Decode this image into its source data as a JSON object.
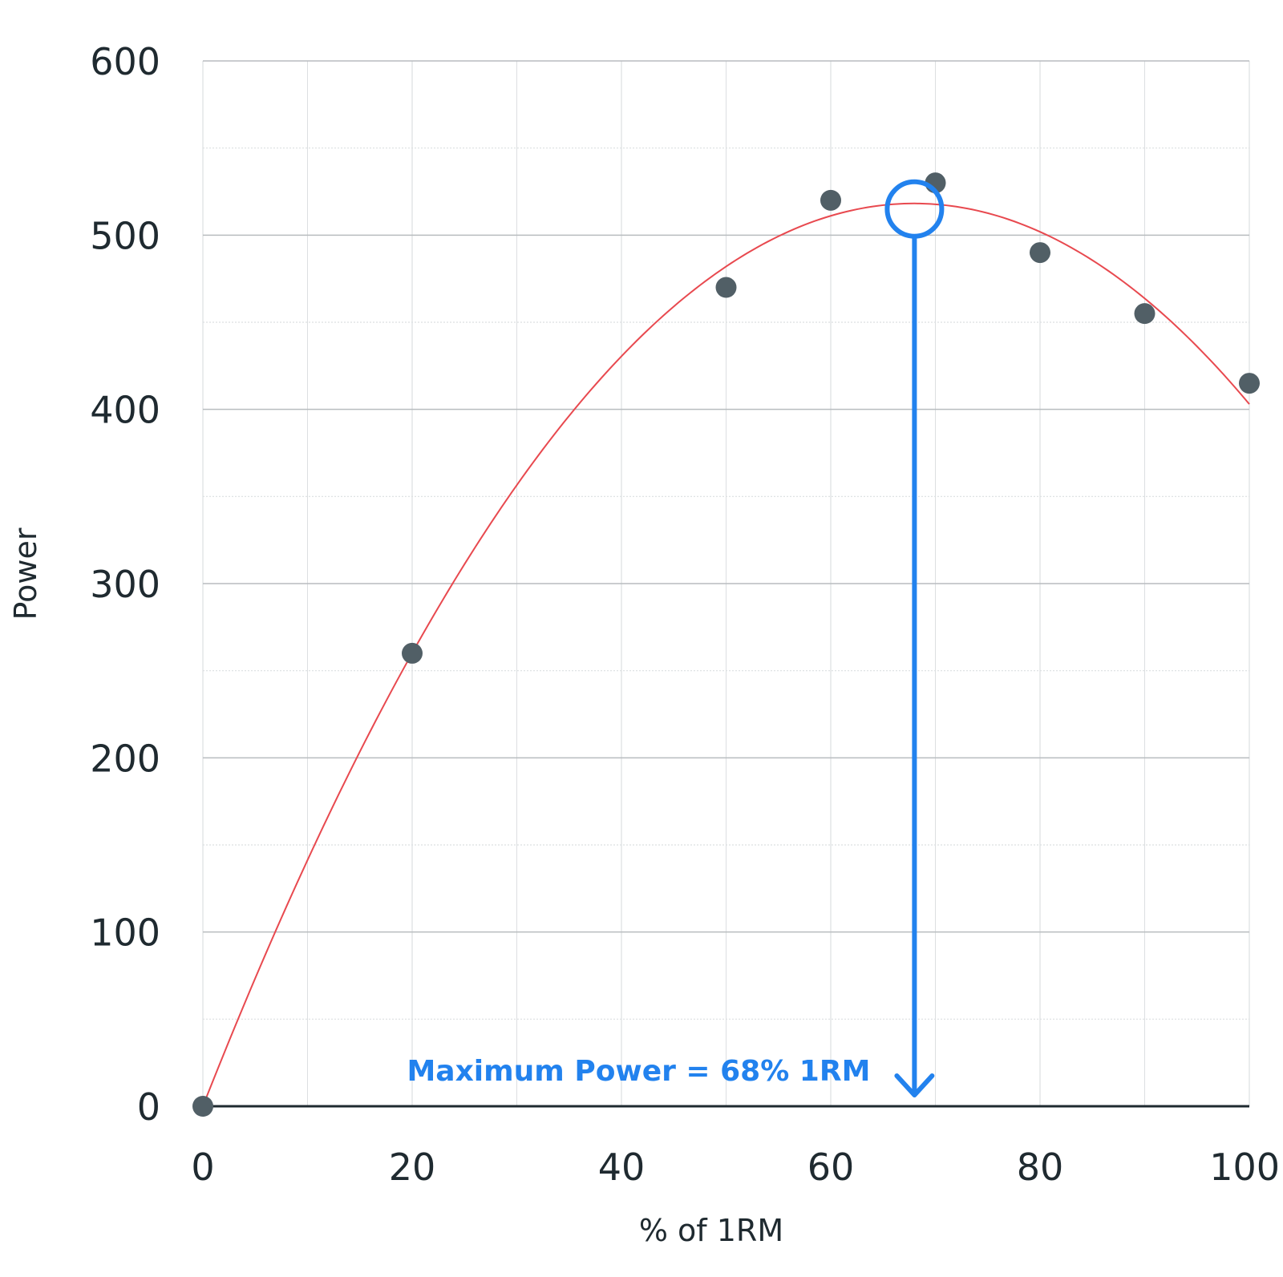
{
  "chart_data": {
    "type": "scatter",
    "xlabel": "% of 1RM",
    "ylabel": "Power",
    "xlim": [
      0,
      100
    ],
    "ylim": [
      0,
      600
    ],
    "x_ticks": [
      0,
      20,
      40,
      60,
      80,
      100
    ],
    "y_ticks": [
      0,
      100,
      200,
      300,
      400,
      500,
      600
    ],
    "x_minor_grid": [
      10,
      30,
      50,
      70,
      90
    ],
    "y_minor_grid": [
      50,
      150,
      250,
      350,
      450,
      550
    ],
    "grid": true,
    "points": [
      {
        "x": 0,
        "y": 0
      },
      {
        "x": 20,
        "y": 260
      },
      {
        "x": 50,
        "y": 470
      },
      {
        "x": 60,
        "y": 520
      },
      {
        "x": 70,
        "y": 530
      },
      {
        "x": 80,
        "y": 490
      },
      {
        "x": 90,
        "y": 455
      },
      {
        "x": 100,
        "y": 415
      }
    ],
    "trendline": {
      "type": "polynomial-2",
      "coefficients": [
        0,
        15.25,
        -0.1122
      ],
      "color": "#e8494f"
    },
    "annotation": {
      "text": "Maximum Power = 68% 1RM",
      "x": 68,
      "y": 515,
      "color": "#2282ee"
    },
    "colors": {
      "points": "#515f66",
      "axis": "#1f2a30",
      "major_grid": "#b8bcbf",
      "minor_grid": "#dcdfe1"
    }
  }
}
